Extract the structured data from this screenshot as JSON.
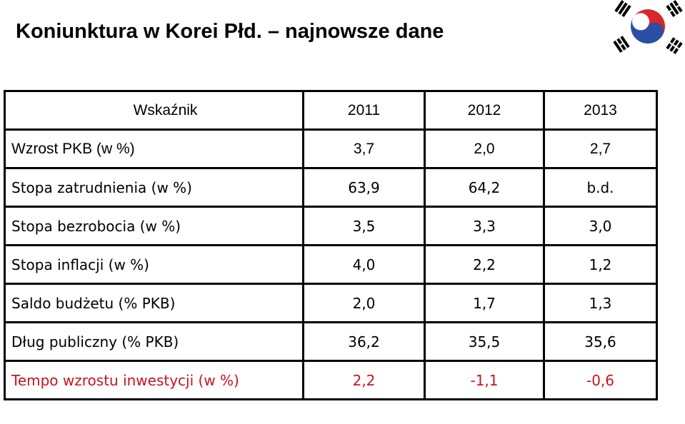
{
  "title": "Koniunktura w Korei Płd. – najnowsze dane",
  "colors": {
    "text": "#000000",
    "highlight": "#c8141e",
    "flag_red": "#d9262d",
    "flag_blue": "#2a4fa3",
    "flag_black": "#000000"
  },
  "flag_icon": "south-korea-flag-icon",
  "table": {
    "headers": [
      "Wskaźnik",
      "2011",
      "2012",
      "2013"
    ],
    "rows": [
      {
        "label": "Wzrost PKB (w %)",
        "values": [
          "3,7",
          "2,0",
          "2,7"
        ]
      },
      {
        "label": "Stopa zatrudnienia (w %)",
        "values": [
          "63,9",
          "64,2",
          "b.d."
        ]
      },
      {
        "label": "Stopa bezrobocia (w %)",
        "values": [
          "3,5",
          "3,3",
          "3,0"
        ]
      },
      {
        "label": "Stopa inflacji (w %)",
        "values": [
          "4,0",
          "2,2",
          "1,2"
        ]
      },
      {
        "label": "Saldo budżetu (% PKB)",
        "values": [
          "2,0",
          "1,7",
          "1,3"
        ]
      },
      {
        "label": "Dług publiczny (% PKB)",
        "values": [
          "36,2",
          "35,5",
          "35,6"
        ]
      },
      {
        "label": "Tempo wzrostu inwestycji (w %)",
        "values": [
          "2,2",
          "-1,1",
          "-0,6"
        ]
      }
    ]
  }
}
